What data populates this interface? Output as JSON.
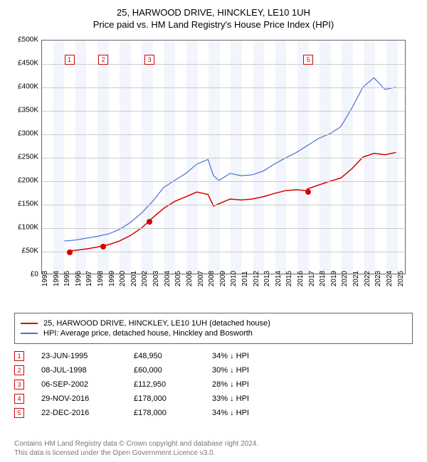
{
  "title": {
    "line1": "25, HARWOOD DRIVE, HINCKLEY, LE10 1UH",
    "line2": "Price paid vs. HM Land Registry's House Price Index (HPI)"
  },
  "chart": {
    "type": "line",
    "background_color": "#ffffff",
    "band_color": "#f2f5fb",
    "grid_color": "#cccccc",
    "border_color": "#666666",
    "x_label_fontsize": 10,
    "y_label_fontsize": 10,
    "xlim": [
      1993,
      2025.8
    ],
    "ylim": [
      0,
      500000
    ],
    "ytick_step": 50000,
    "ytick_prefix": "£",
    "ytick_suffix": "K",
    "xticks": [
      1993,
      1994,
      1995,
      1996,
      1997,
      1998,
      1999,
      2000,
      2001,
      2002,
      2003,
      2004,
      2005,
      2006,
      2007,
      2008,
      2009,
      2010,
      2011,
      2012,
      2013,
      2014,
      2015,
      2016,
      2017,
      2018,
      2019,
      2020,
      2021,
      2022,
      2023,
      2024,
      2025
    ],
    "series": [
      {
        "name": "price_paid",
        "label": "25, HARWOOD DRIVE, HINCKLEY, LE10 1UH (detached house)",
        "color": "#d40000",
        "line_width": 1.5,
        "data": [
          [
            1995.5,
            48950
          ],
          [
            1996,
            50000
          ],
          [
            1997,
            53000
          ],
          [
            1998,
            57000
          ],
          [
            1998.5,
            60000
          ],
          [
            1999,
            62000
          ],
          [
            2000,
            70000
          ],
          [
            2001,
            82000
          ],
          [
            2002,
            98000
          ],
          [
            2002.7,
            112950
          ],
          [
            2003,
            120000
          ],
          [
            2004,
            140000
          ],
          [
            2005,
            155000
          ],
          [
            2006,
            165000
          ],
          [
            2007,
            175000
          ],
          [
            2008,
            170000
          ],
          [
            2008.5,
            145000
          ],
          [
            2009,
            150000
          ],
          [
            2010,
            160000
          ],
          [
            2011,
            158000
          ],
          [
            2012,
            160000
          ],
          [
            2013,
            165000
          ],
          [
            2014,
            172000
          ],
          [
            2015,
            178000
          ],
          [
            2016,
            180000
          ],
          [
            2016.9,
            178000
          ],
          [
            2017,
            182000
          ],
          [
            2018,
            190000
          ],
          [
            2019,
            198000
          ],
          [
            2020,
            205000
          ],
          [
            2021,
            225000
          ],
          [
            2022,
            250000
          ],
          [
            2023,
            258000
          ],
          [
            2024,
            255000
          ],
          [
            2025,
            260000
          ]
        ]
      },
      {
        "name": "hpi",
        "label": "HPI: Average price, detached house, Hinckley and Bosworth",
        "color": "#4a6fd4",
        "line_width": 1.2,
        "data": [
          [
            1995,
            70000
          ],
          [
            1996,
            72000
          ],
          [
            1997,
            76000
          ],
          [
            1998,
            80000
          ],
          [
            1999,
            85000
          ],
          [
            2000,
            95000
          ],
          [
            2001,
            110000
          ],
          [
            2002,
            130000
          ],
          [
            2003,
            155000
          ],
          [
            2004,
            185000
          ],
          [
            2005,
            200000
          ],
          [
            2006,
            215000
          ],
          [
            2007,
            235000
          ],
          [
            2008,
            245000
          ],
          [
            2008.5,
            210000
          ],
          [
            2009,
            200000
          ],
          [
            2010,
            215000
          ],
          [
            2011,
            210000
          ],
          [
            2012,
            212000
          ],
          [
            2013,
            220000
          ],
          [
            2014,
            235000
          ],
          [
            2015,
            248000
          ],
          [
            2016,
            260000
          ],
          [
            2017,
            275000
          ],
          [
            2018,
            290000
          ],
          [
            2019,
            300000
          ],
          [
            2020,
            315000
          ],
          [
            2021,
            355000
          ],
          [
            2022,
            400000
          ],
          [
            2023,
            420000
          ],
          [
            2024,
            395000
          ],
          [
            2025,
            400000
          ]
        ]
      }
    ],
    "sale_markers": [
      {
        "n": "1",
        "year": 1995.47,
        "price": 48950,
        "box_top": 20
      },
      {
        "n": "2",
        "year": 1998.52,
        "price": 60000,
        "box_top": 20
      },
      {
        "n": "3",
        "year": 2002.68,
        "price": 112950,
        "box_top": 20
      },
      {
        "n": "5",
        "year": 2016.97,
        "price": 178000,
        "box_top": 20
      }
    ],
    "marker_style": {
      "dot_radius": 4,
      "box_size": 14,
      "box_bg": "#ffffff"
    }
  },
  "legend": {
    "rows": [
      {
        "color": "#d40000",
        "label": "25, HARWOOD DRIVE, HINCKLEY, LE10 1UH (detached house)"
      },
      {
        "color": "#4a6fd4",
        "label": "HPI: Average price, detached house, Hinckley and Bosworth"
      }
    ]
  },
  "sales_table": {
    "box_color": "#d40000",
    "rows": [
      {
        "n": "1",
        "date": "23-JUN-1995",
        "price": "£48,950",
        "delta": "34% ↓ HPI"
      },
      {
        "n": "2",
        "date": "08-JUL-1998",
        "price": "£60,000",
        "delta": "30% ↓ HPI"
      },
      {
        "n": "3",
        "date": "06-SEP-2002",
        "price": "£112,950",
        "delta": "28% ↓ HPI"
      },
      {
        "n": "4",
        "date": "29-NOV-2016",
        "price": "£178,000",
        "delta": "33% ↓ HPI"
      },
      {
        "n": "5",
        "date": "22-DEC-2016",
        "price": "£178,000",
        "delta": "34% ↓ HPI"
      }
    ]
  },
  "footnote": {
    "line1": "Contains HM Land Registry data © Crown copyright and database right 2024.",
    "line2": "This data is licensed under the Open Government Licence v3.0."
  }
}
